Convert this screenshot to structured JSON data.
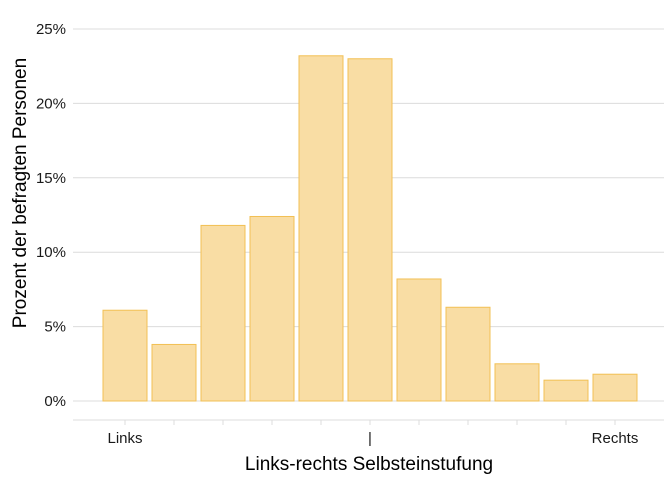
{
  "chart_data": {
    "type": "bar",
    "categories": [
      "0",
      "1",
      "2",
      "3",
      "4",
      "5",
      "6",
      "7",
      "8",
      "9",
      "10"
    ],
    "x_tick_labels": [
      "Links",
      "",
      "",
      "",
      "",
      "|",
      "",
      "",
      "",
      "",
      "Rechts"
    ],
    "values": [
      6.1,
      3.8,
      11.8,
      12.4,
      23.2,
      23.0,
      8.2,
      6.3,
      2.5,
      1.4,
      1.8
    ],
    "xlabel": "Links-rechts Selbsteinstufung",
    "ylabel": "Prozent der befragten Personen",
    "ylim": [
      0,
      25
    ],
    "yticks": [
      0,
      5,
      10,
      15,
      20,
      25
    ],
    "ytick_labels": [
      "0%",
      "5%",
      "10%",
      "15%",
      "20%",
      "25%"
    ],
    "grid": "horizontal",
    "colors": {
      "bar_fill": "#F9DDA4",
      "bar_stroke": "#F2C054",
      "grid": "#DCDCDC"
    }
  }
}
